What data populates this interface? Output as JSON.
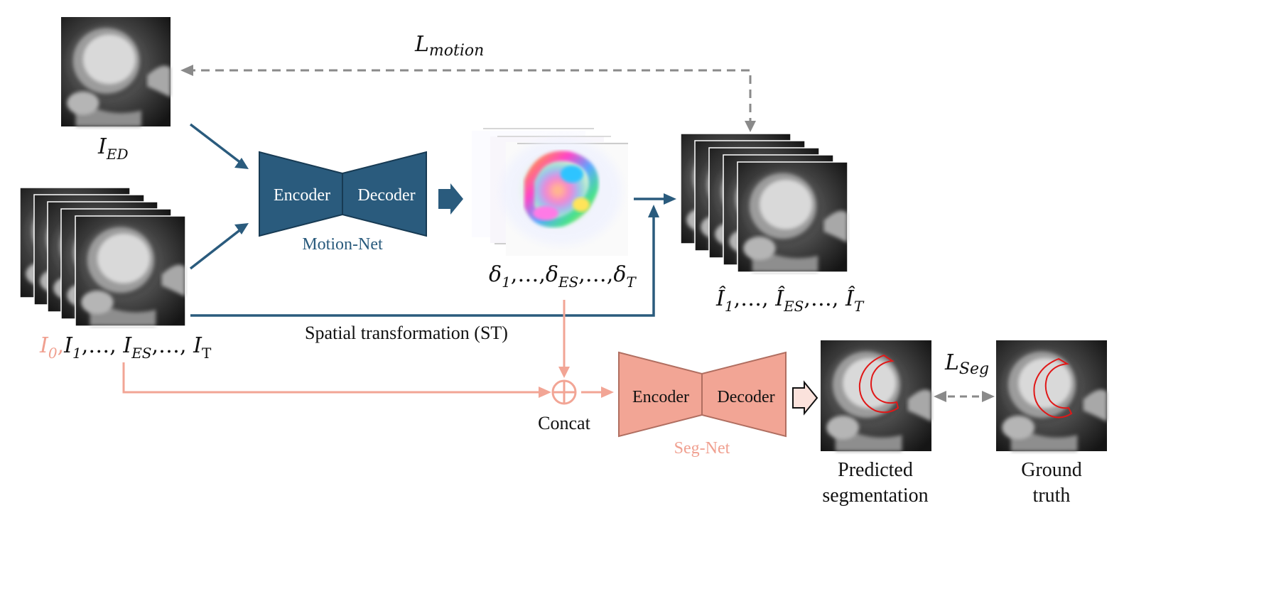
{
  "colors": {
    "motion_blue": "#2a5b7d",
    "seg_salmon": "#f2a595",
    "seg_text": "#f0a090",
    "dashed_gray": "#8a8a8a",
    "contour_red": "#e01818",
    "text_black": "#111111"
  },
  "labels": {
    "loss_motion": {
      "base": "L",
      "sub": "motion"
    },
    "loss_seg": {
      "base": "L",
      "sub": "Seg"
    },
    "i_ed": {
      "base": "I",
      "sub": "ED"
    },
    "input_seq": {
      "i0": "I",
      "i0_sub": "0",
      "sep0": ",",
      "i1": "I",
      "i1_sub": "1",
      "dots1": ",…, ",
      "ies": "I",
      "ies_sub": "ES",
      "dots2": ",…, ",
      "it": "I",
      "it_sub": "T"
    },
    "delta_seq": {
      "d1": "δ",
      "d1_sub": "1",
      "dots1": ",…,",
      "des": "δ",
      "des_sub": "ES",
      "dots2": ",…,",
      "dt": "δ",
      "dt_sub": "T"
    },
    "ihat_seq": {
      "i1": "Î",
      "i1_sub": "1",
      "dots1": ",…, ",
      "ies": "Î",
      "ies_sub": "ES",
      "dots2": ",…, ",
      "it": "Î",
      "it_sub": "T"
    },
    "spatial_transformation": "Spatial transformation (ST)",
    "concat": "Concat",
    "motion_net": "Motion-Net",
    "seg_net": "Seg-Net",
    "encoder": "Encoder",
    "decoder": "Decoder",
    "predicted_line1": "Predicted",
    "predicted_line2": "segmentation",
    "ground_line1": "Ground",
    "ground_line2": "truth"
  },
  "icons": {
    "concat_symbol": "circled-plus-icon",
    "block_arrow": "block-arrow-icon"
  }
}
